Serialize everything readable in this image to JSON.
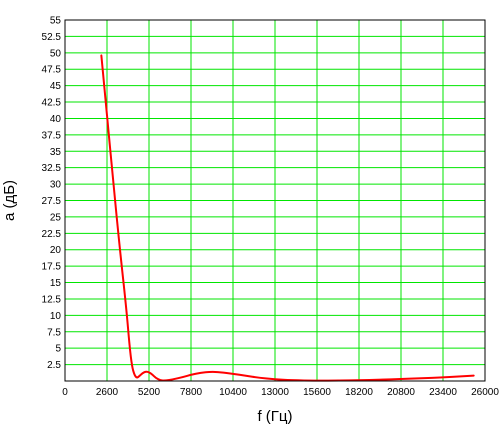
{
  "chart_data": {
    "type": "line",
    "xlabel": "f (Гц)",
    "ylabel": "a (дБ)",
    "xlim": [
      0,
      26000
    ],
    "ylim": [
      0,
      55
    ],
    "grid": true,
    "x_ticks": [
      0,
      2600,
      5200,
      7800,
      10400,
      13000,
      15600,
      18200,
      20800,
      23400,
      26000
    ],
    "y_ticks": [
      2.5,
      5,
      7.5,
      10,
      12.5,
      15,
      17.5,
      20,
      22.5,
      25,
      27.5,
      30,
      32.5,
      35,
      37.5,
      40,
      42.5,
      45,
      47.5,
      50,
      52.5,
      55
    ],
    "y_tick_labels": [
      "2.5",
      "5",
      "7.5",
      "10",
      "12.5",
      "15",
      "17.5",
      "20",
      "22.5",
      "25",
      "27.5",
      "30",
      "32.5",
      "35",
      "37.5",
      "40",
      "42.5",
      "45",
      "47.5",
      "50",
      "52.5",
      "55"
    ],
    "colors": {
      "grid": "#00e600",
      "line": "#ff0000",
      "text": "#000000"
    },
    "series": [
      {
        "x": [
          2250,
          2600,
          3000,
          3400,
          3800,
          4000,
          4150,
          4300,
          4450,
          4600,
          4800,
          5000,
          5200,
          5400,
          5600,
          5900,
          6200,
          6700,
          7300,
          7800,
          8400,
          9000,
          9600,
          10400,
          11200,
          12000,
          13000,
          14000,
          15600,
          17000,
          18200,
          19500,
          20800,
          22000,
          23400,
          24500,
          25300
        ],
        "y": [
          49.6,
          40.5,
          30.0,
          20.0,
          11.0,
          5.2,
          2.2,
          0.9,
          0.45,
          0.75,
          1.2,
          1.45,
          1.35,
          1.0,
          0.5,
          0.1,
          0.05,
          0.25,
          0.6,
          0.95,
          1.25,
          1.4,
          1.35,
          1.1,
          0.8,
          0.5,
          0.25,
          0.12,
          0.05,
          0.07,
          0.12,
          0.2,
          0.3,
          0.42,
          0.55,
          0.7,
          0.82
        ]
      }
    ]
  }
}
